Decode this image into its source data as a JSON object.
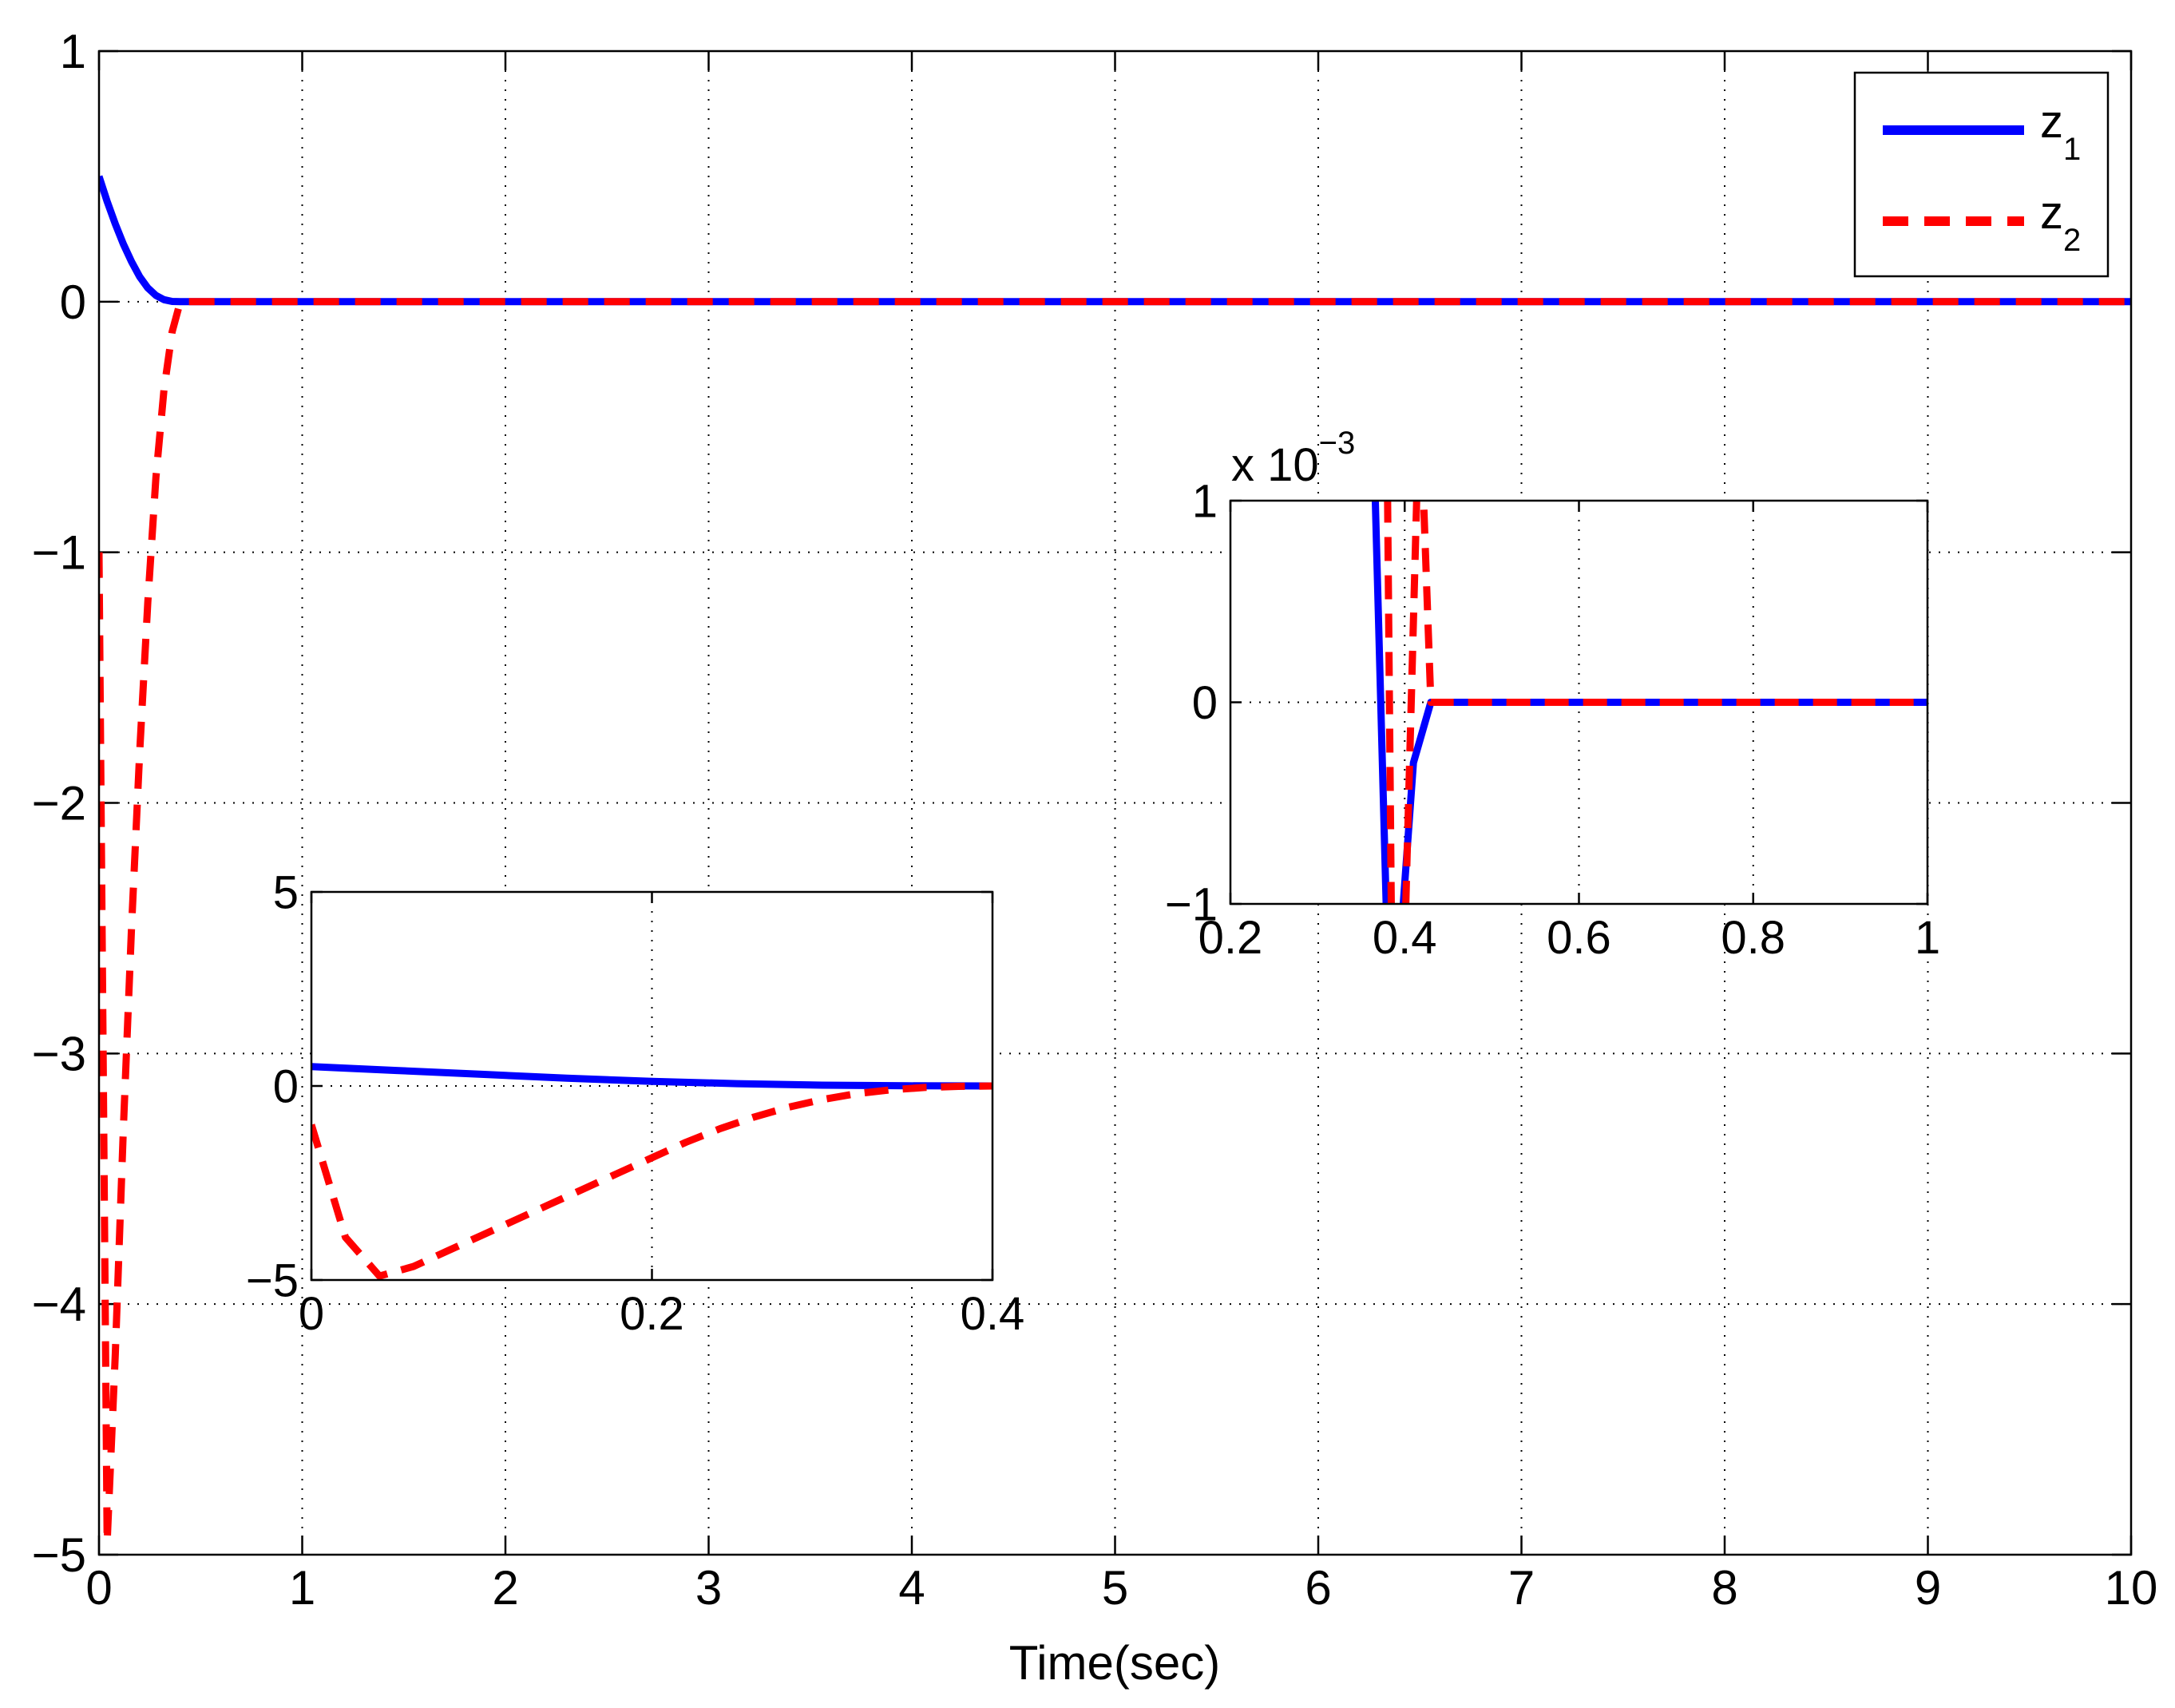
{
  "figure": {
    "xlabel": "Time(sec)",
    "legend_labels": [
      {
        "base": "z",
        "sub": "1"
      },
      {
        "base": "z",
        "sub": "2"
      }
    ]
  },
  "colors": {
    "z1": "#0000ff",
    "z2": "#ff0000",
    "grid": "#000000",
    "axes": "#000000",
    "background": "#ffffff"
  },
  "chart_data": [
    {
      "name": "main",
      "type": "line",
      "xlabel": "Time(sec)",
      "ylabel": "",
      "xlim": [
        0,
        10
      ],
      "ylim": [
        -5,
        1
      ],
      "xticks": [
        0,
        1,
        2,
        3,
        4,
        5,
        6,
        7,
        8,
        9,
        10
      ],
      "xtick_labels": [
        "0",
        "1",
        "2",
        "3",
        "4",
        "5",
        "6",
        "7",
        "8",
        "9",
        "10"
      ],
      "yticks": [
        -5,
        -4,
        -3,
        -2,
        -1,
        0,
        1
      ],
      "ytick_labels": [
        "−5",
        "−4",
        "−3",
        "−2",
        "−1",
        "0",
        "1"
      ],
      "grid": true,
      "legend": "top-right",
      "series": [
        {
          "name": "z1",
          "style": "solid",
          "x": [
            0,
            0.04,
            0.08,
            0.12,
            0.16,
            0.2,
            0.24,
            0.28,
            0.32,
            0.36,
            0.4,
            10
          ],
          "y": [
            0.5,
            0.4,
            0.31,
            0.23,
            0.16,
            0.1,
            0.055,
            0.025,
            0.008,
            0.001,
            0,
            0
          ]
        },
        {
          "name": "z2",
          "style": "dashed",
          "x": [
            0,
            0.04,
            0.08,
            0.12,
            0.16,
            0.2,
            0.24,
            0.28,
            0.32,
            0.36,
            0.4,
            10
          ],
          "y": [
            -1,
            -4.95,
            -4.2,
            -3.3,
            -2.5,
            -1.8,
            -1.2,
            -0.7,
            -0.35,
            -0.12,
            0,
            0
          ]
        }
      ]
    },
    {
      "name": "inset-zoom-early",
      "type": "line",
      "xlim": [
        0,
        0.4
      ],
      "ylim": [
        -5,
        5
      ],
      "xticks": [
        0,
        0.2,
        0.4
      ],
      "xtick_labels": [
        "0",
        "0.2",
        "0.4"
      ],
      "yticks": [
        -5,
        0,
        5
      ],
      "ytick_labels": [
        "−5",
        "0",
        "5"
      ],
      "grid": true,
      "series": [
        {
          "name": "z1",
          "style": "solid",
          "x": [
            0,
            0.05,
            0.1,
            0.15,
            0.2,
            0.25,
            0.3,
            0.35,
            0.4
          ],
          "y": [
            0.5,
            0.4,
            0.3,
            0.2,
            0.12,
            0.06,
            0.02,
            0.005,
            0
          ]
        },
        {
          "name": "z2",
          "style": "dashed",
          "x": [
            0,
            0.02,
            0.04,
            0.06,
            0.08,
            0.1,
            0.12,
            0.14,
            0.16,
            0.18,
            0.2,
            0.22,
            0.24,
            0.26,
            0.28,
            0.3,
            0.32,
            0.34,
            0.36,
            0.38,
            0.4
          ],
          "y": [
            -1,
            -3.9,
            -4.9,
            -4.65,
            -4.25,
            -3.85,
            -3.45,
            -3.05,
            -2.65,
            -2.25,
            -1.85,
            -1.45,
            -1.1,
            -0.8,
            -0.55,
            -0.35,
            -0.2,
            -0.1,
            -0.04,
            -0.01,
            0
          ]
        }
      ]
    },
    {
      "name": "inset-zoom-settling",
      "type": "line",
      "xlim": [
        0.2,
        1
      ],
      "ylim": [
        -1,
        1
      ],
      "y_exponent_label": {
        "prefix": "x 10",
        "exponent": "−3"
      },
      "xticks": [
        0.2,
        0.4,
        0.6,
        0.8,
        1
      ],
      "xtick_labels": [
        "0.2",
        "0.4",
        "0.6",
        "0.8",
        "1"
      ],
      "yticks": [
        -1,
        0,
        1
      ],
      "ytick_labels": [
        "−1",
        "0",
        "1"
      ],
      "grid": true,
      "series": [
        {
          "name": "z1",
          "style": "solid",
          "x": [
            0.365,
            0.38,
            0.388,
            0.395,
            0.41,
            0.43,
            1
          ],
          "y": [
            1.2,
            -1.2,
            -1.2,
            -1.2,
            -0.3,
            0,
            0
          ]
        },
        {
          "name": "z2",
          "style": "dashed",
          "x": [
            0.38,
            0.385,
            0.4,
            0.415,
            0.42,
            0.43,
            1
          ],
          "y": [
            1.2,
            -1.2,
            -1.2,
            1.2,
            1.2,
            0,
            0
          ]
        }
      ]
    }
  ]
}
